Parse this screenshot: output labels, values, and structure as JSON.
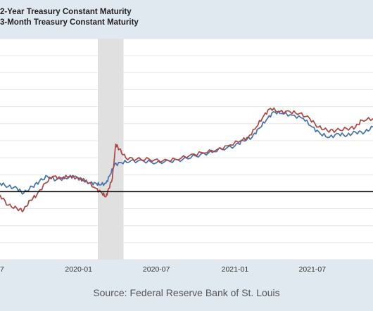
{
  "legend": {
    "items": [
      {
        "label": "2-Year Treasury Constant Maturity",
        "color": "#4572a7"
      },
      {
        "label": "3-Month Treasury Constant Maturity",
        "color": "#aa4643"
      }
    ]
  },
  "source": "Source: Federal Reserve Bank of St. Louis",
  "colors": {
    "background": "#e1e9f0",
    "plot_background": "#ffffff",
    "gridline": "#e6e6e6",
    "recession_band": "#e0e0e0",
    "reference_line": "#000000"
  },
  "chart_data": {
    "type": "line",
    "title": "",
    "xlabel": "",
    "ylabel": "",
    "x_type": "date",
    "xlim": [
      "2019-07-01",
      "2021-11-20"
    ],
    "ylim": [
      -0.4,
      0.9
    ],
    "grid": true,
    "legend_position": "top-left",
    "x_ticks": [
      {
        "date": "2019-07-01",
        "label": "7"
      },
      {
        "date": "2020-01-01",
        "label": "2020-01"
      },
      {
        "date": "2020-07-01",
        "label": "2020-07"
      },
      {
        "date": "2021-01-01",
        "label": "2021-01"
      },
      {
        "date": "2021-07-01",
        "label": "2021-07"
      }
    ],
    "reference_line": {
      "y": 0
    },
    "recession_band": {
      "start": "2020-02-15",
      "end": "2020-04-15"
    },
    "series": [
      {
        "name": "2-Year Treasury Constant Maturity",
        "color": "#4572a7",
        "points": [
          [
            "2019-07-01",
            0.05
          ],
          [
            "2019-07-20",
            0.03
          ],
          [
            "2019-08-10",
            0.02
          ],
          [
            "2019-08-25",
            -0.01
          ],
          [
            "2019-09-15",
            0.03
          ],
          [
            "2019-10-01",
            0.06
          ],
          [
            "2019-10-20",
            0.09
          ],
          [
            "2019-11-10",
            0.07
          ],
          [
            "2019-12-01",
            0.08
          ],
          [
            "2019-12-20",
            0.09
          ],
          [
            "2020-01-10",
            0.07
          ],
          [
            "2020-01-25",
            0.05
          ],
          [
            "2020-02-10",
            0.05
          ],
          [
            "2020-02-20",
            0.04
          ],
          [
            "2020-03-05",
            0.05
          ],
          [
            "2020-03-15",
            0.1
          ],
          [
            "2020-03-25",
            0.16
          ],
          [
            "2020-04-10",
            0.17
          ],
          [
            "2020-05-01",
            0.18
          ],
          [
            "2020-06-01",
            0.18
          ],
          [
            "2020-07-01",
            0.17
          ],
          [
            "2020-08-01",
            0.18
          ],
          [
            "2020-09-01",
            0.19
          ],
          [
            "2020-10-01",
            0.21
          ],
          [
            "2020-11-01",
            0.23
          ],
          [
            "2020-12-01",
            0.25
          ],
          [
            "2021-01-01",
            0.27
          ],
          [
            "2021-01-20",
            0.3
          ],
          [
            "2021-02-10",
            0.32
          ],
          [
            "2021-02-25",
            0.37
          ],
          [
            "2021-03-15",
            0.42
          ],
          [
            "2021-04-01",
            0.47
          ],
          [
            "2021-04-20",
            0.46
          ],
          [
            "2021-05-15",
            0.45
          ],
          [
            "2021-06-10",
            0.43
          ],
          [
            "2021-07-01",
            0.38
          ],
          [
            "2021-07-20",
            0.34
          ],
          [
            "2021-08-10",
            0.32
          ],
          [
            "2021-09-01",
            0.34
          ],
          [
            "2021-09-20",
            0.33
          ],
          [
            "2021-10-10",
            0.35
          ],
          [
            "2021-11-01",
            0.35
          ],
          [
            "2021-11-20",
            0.38
          ]
        ]
      },
      {
        "name": "3-Month Treasury Constant Maturity",
        "color": "#aa4643",
        "points": [
          [
            "2019-07-01",
            -0.02
          ],
          [
            "2019-07-20",
            -0.08
          ],
          [
            "2019-08-10",
            -0.1
          ],
          [
            "2019-08-25",
            -0.11
          ],
          [
            "2019-09-10",
            -0.05
          ],
          [
            "2019-09-25",
            -0.02
          ],
          [
            "2019-10-15",
            0.05
          ],
          [
            "2019-11-01",
            0.09
          ],
          [
            "2019-11-20",
            0.08
          ],
          [
            "2019-12-10",
            0.09
          ],
          [
            "2020-01-01",
            0.08
          ],
          [
            "2020-01-20",
            0.06
          ],
          [
            "2020-02-10",
            0.02
          ],
          [
            "2020-02-25",
            -0.01
          ],
          [
            "2020-03-05",
            -0.03
          ],
          [
            "2020-03-12",
            0.02
          ],
          [
            "2020-03-20",
            0.08
          ],
          [
            "2020-03-28",
            0.28
          ],
          [
            "2020-04-05",
            0.25
          ],
          [
            "2020-04-20",
            0.2
          ],
          [
            "2020-05-15",
            0.19
          ],
          [
            "2020-06-15",
            0.19
          ],
          [
            "2020-07-15",
            0.18
          ],
          [
            "2020-08-15",
            0.19
          ],
          [
            "2020-09-15",
            0.21
          ],
          [
            "2020-10-15",
            0.23
          ],
          [
            "2020-11-15",
            0.24
          ],
          [
            "2020-12-15",
            0.27
          ],
          [
            "2021-01-15",
            0.3
          ],
          [
            "2021-02-01",
            0.32
          ],
          [
            "2021-02-20",
            0.38
          ],
          [
            "2021-03-10",
            0.45
          ],
          [
            "2021-03-25",
            0.49
          ],
          [
            "2021-04-15",
            0.47
          ],
          [
            "2021-05-10",
            0.47
          ],
          [
            "2021-06-01",
            0.46
          ],
          [
            "2021-06-25",
            0.43
          ],
          [
            "2021-07-15",
            0.38
          ],
          [
            "2021-08-05",
            0.36
          ],
          [
            "2021-08-25",
            0.36
          ],
          [
            "2021-09-20",
            0.37
          ],
          [
            "2021-10-10",
            0.38
          ],
          [
            "2021-10-25",
            0.42
          ],
          [
            "2021-11-20",
            0.43
          ]
        ]
      }
    ]
  }
}
